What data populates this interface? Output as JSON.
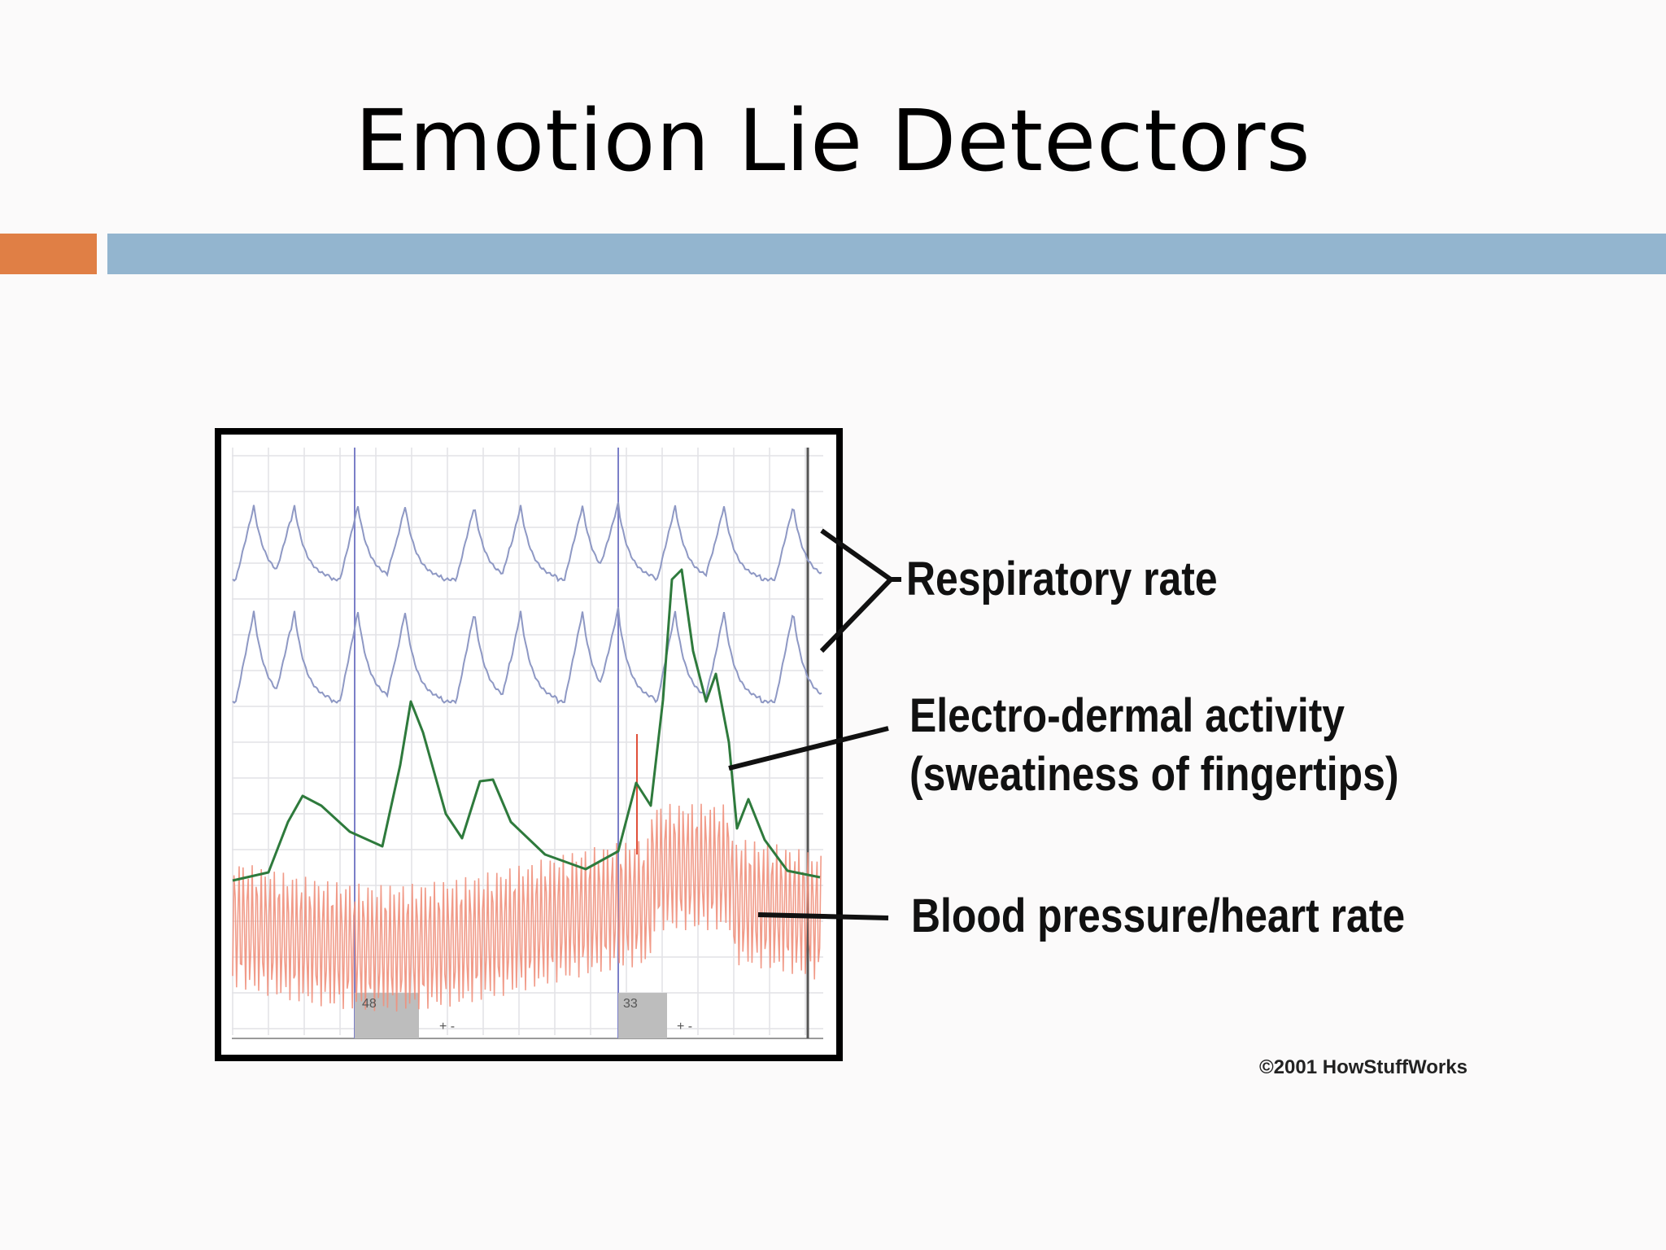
{
  "slide": {
    "title": "Emotion Lie Detectors",
    "accent_color": "#e07f45",
    "bar_color": "#93b5cf"
  },
  "diagram": {
    "labels": {
      "respiratory": "Respiratory rate",
      "electrodermal_line1": "Electro-dermal activity",
      "electrodermal_line2": "(sweatiness of fingertips)",
      "blood_pressure": "Blood pressure/heart rate"
    },
    "trace_colors": {
      "respiratory": "#8e98c4",
      "electrodermal": "#2e7a3c",
      "blood_pressure": "#f0907c",
      "marker": "#7b7fc8"
    },
    "question_markers": [
      {
        "number": "48",
        "answer": "+ -"
      },
      {
        "number": "33",
        "answer": "+ -"
      }
    ],
    "credit": "©2001 HowStuffWorks"
  }
}
